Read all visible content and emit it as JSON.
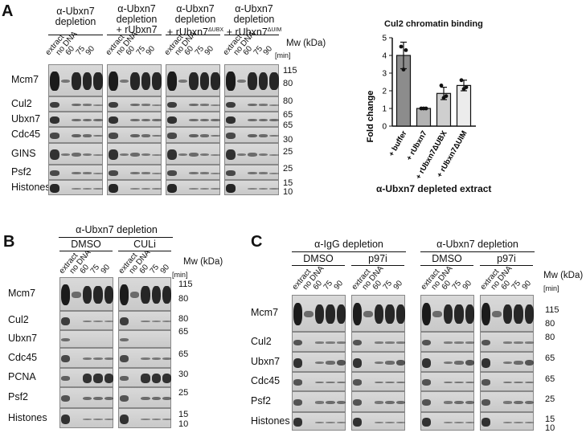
{
  "panels": {
    "A": {
      "letter": "A",
      "conditions": [
        "α-Ubxn7 depletion",
        "α-Ubxn7 depletion + rUbxn7",
        "α-Ubxn7 depletion + rUbxn7ΔUBX",
        "α-Ubxn7 depletion + rUbxn7ΔUIM"
      ],
      "cond_lines": [
        [
          "α-Ubxn7",
          "depletion",
          ""
        ],
        [
          "α-Ubxn7",
          "depletion",
          "+ rUbxn7"
        ],
        [
          "α-Ubxn7",
          "depletion",
          "+ rUbxn7",
          "ΔUBX"
        ],
        [
          "α-Ubxn7",
          "depletion",
          "+ rUbxn7",
          "ΔUIM"
        ]
      ],
      "lanes": [
        "extract",
        "no DNA",
        "60",
        "75",
        "90"
      ],
      "mw_header": "Mw (kDa)",
      "time_unit": "[min]",
      "rows": [
        "Mcm7",
        "Cul2",
        "Ubxn7",
        "Cdc45",
        "GINS",
        "Psf2",
        "Histones"
      ],
      "mw": [
        "115",
        "80",
        "80",
        "65",
        "65",
        "30",
        "25",
        "25",
        "15",
        "10"
      ]
    },
    "B": {
      "letter": "B",
      "header": "α-Ubxn7 depletion",
      "treatments": [
        "DMSO",
        "CULi"
      ],
      "lanes": [
        "extract",
        "no DNA",
        "60",
        "75",
        "90"
      ],
      "mw_header": "Mw (kDa)",
      "time_unit": "[min]",
      "rows": [
        "Mcm7",
        "Cul2",
        "Ubxn7",
        "Cdc45",
        "PCNA",
        "Psf2",
        "Histones"
      ],
      "mw": [
        "115",
        "80",
        "80",
        "65",
        "65",
        "30",
        "25",
        "15",
        "10"
      ]
    },
    "C": {
      "letter": "C",
      "headers": [
        "α-IgG depletion",
        "α-Ubxn7 depletion"
      ],
      "treatments": [
        "DMSO",
        "p97i",
        "DMSO",
        "p97i"
      ],
      "lanes": [
        "extract",
        "no DNA",
        "60",
        "75",
        "90"
      ],
      "mw_header": "Mw (kDa)",
      "time_unit": "[min]",
      "rows": [
        "Mcm7",
        "Cul2",
        "Ubxn7",
        "Cdc45",
        "Psf2",
        "Histones"
      ],
      "mw": [
        "115",
        "80",
        "80",
        "65",
        "65",
        "25",
        "15",
        "10"
      ]
    }
  },
  "chart_data": {
    "type": "bar",
    "title": "Cul2 chromatin binding",
    "ylabel": "Fold change",
    "xlabel": "α-Ubxn7 depleted extract",
    "categories": [
      "+ buffer",
      "+ rUbxn7",
      "+ rUbxn7ΔUBX",
      "+ rUbxn7ΔUIM"
    ],
    "values": [
      4.0,
      1.0,
      1.85,
      2.3
    ],
    "errors": [
      0.75,
      0.05,
      0.35,
      0.3
    ],
    "points": [
      [
        4.5,
        3.2,
        4.3
      ],
      [
        1.0,
        1.0,
        1.0
      ],
      [
        2.3,
        1.6,
        1.7
      ],
      [
        2.6,
        2.1,
        2.2
      ]
    ],
    "bar_colors": [
      "#8c8c8c",
      "#b3b3b3",
      "#cfcfcf",
      "#ececec"
    ],
    "ylim": [
      0,
      5
    ],
    "yticks": [
      "0",
      "1",
      "2",
      "3",
      "4",
      "5"
    ]
  }
}
